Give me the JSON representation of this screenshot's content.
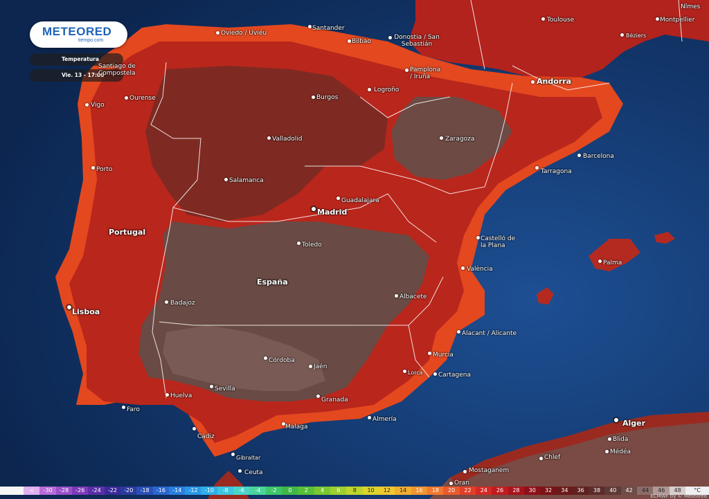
{
  "brand": {
    "name": "METEORED",
    "sub": "tiempo.com"
  },
  "panel": {
    "layer": "Temperatura",
    "time": "Vie. 13 - 17:00"
  },
  "countries": [
    {
      "name": "Portugal",
      "key": "portugal"
    },
    {
      "name": "España",
      "key": "espana"
    }
  ],
  "cities": [
    {
      "name": "Oviedo / Uviéu",
      "key": "oviedo"
    },
    {
      "name": "Santander",
      "key": "santander"
    },
    {
      "name": "Bilbao",
      "key": "bilbao"
    },
    {
      "name": "Donostia / San Sebastián",
      "key": "donostia"
    },
    {
      "name": "Toulouse",
      "key": "toulouse"
    },
    {
      "name": "Nîmes",
      "key": "nimes"
    },
    {
      "name": "Montpellier",
      "key": "montpellier"
    },
    {
      "name": "Béziers",
      "key": "beziers"
    },
    {
      "name": "Santiago de Compostela",
      "key": "santiago"
    },
    {
      "name": "Ourense",
      "key": "ourense"
    },
    {
      "name": "Vigo",
      "key": "vigo"
    },
    {
      "name": "Pamplona / Iruña",
      "key": "pamplona"
    },
    {
      "name": "Logroño",
      "key": "logrono"
    },
    {
      "name": "Burgos",
      "key": "burgos"
    },
    {
      "name": "Andorra",
      "key": "andorra"
    },
    {
      "name": "Valladolid",
      "key": "valladolid"
    },
    {
      "name": "Zaragoza",
      "key": "zaragoza"
    },
    {
      "name": "Barcelona",
      "key": "barcelona"
    },
    {
      "name": "Tarragona",
      "key": "tarragona"
    },
    {
      "name": "Porto",
      "key": "porto"
    },
    {
      "name": "Salamanca",
      "key": "salamanca"
    },
    {
      "name": "Guadalajara",
      "key": "guadalajara"
    },
    {
      "name": "Madrid",
      "key": "madrid"
    },
    {
      "name": "Toledo",
      "key": "toledo"
    },
    {
      "name": "Castelló de la Plana",
      "key": "castello"
    },
    {
      "name": "Palma",
      "key": "palma"
    },
    {
      "name": "València",
      "key": "valencia"
    },
    {
      "name": "Lisboa",
      "key": "lisboa"
    },
    {
      "name": "Badajoz",
      "key": "badajoz"
    },
    {
      "name": "Albacete",
      "key": "albacete"
    },
    {
      "name": "Alacant / Alicante",
      "key": "alicante"
    },
    {
      "name": "Córdoba",
      "key": "cordoba"
    },
    {
      "name": "Jaén",
      "key": "jaen"
    },
    {
      "name": "Murcia",
      "key": "murcia"
    },
    {
      "name": "Lorca",
      "key": "lorca"
    },
    {
      "name": "Cartagena",
      "key": "cartagena"
    },
    {
      "name": "Sevilla",
      "key": "sevilla"
    },
    {
      "name": "Granada",
      "key": "granada"
    },
    {
      "name": "Huelva",
      "key": "huelva"
    },
    {
      "name": "Faro",
      "key": "faro"
    },
    {
      "name": "Almería",
      "key": "almeria"
    },
    {
      "name": "Málaga",
      "key": "malaga"
    },
    {
      "name": "Cádiz",
      "key": "cadiz"
    },
    {
      "name": "Gibraltar",
      "key": "gibraltar"
    },
    {
      "name": "Ceuta",
      "key": "ceuta"
    },
    {
      "name": "Alger",
      "key": "alger"
    },
    {
      "name": "Blida",
      "key": "blida"
    },
    {
      "name": "Médéa",
      "key": "medea"
    },
    {
      "name": "Chlef",
      "key": "chlef"
    },
    {
      "name": "Mostaganem",
      "key": "mostaganem"
    },
    {
      "name": "Oran",
      "key": "oran"
    }
  ],
  "legend": {
    "unit": "°C",
    "ticks": [
      "<",
      "-30",
      "-28",
      "-26",
      "-24",
      "-22",
      "-20",
      "-18",
      "-16",
      "-14",
      "-12",
      "-10",
      "-8",
      "-6",
      "-4",
      "-2",
      "0",
      "2",
      "4",
      "6",
      "8",
      "10",
      "12",
      "14",
      "16",
      "18",
      "20",
      "22",
      "24",
      "26",
      "28",
      "30",
      "32",
      "34",
      "36",
      "38",
      "40",
      "42",
      "44",
      "46",
      "48"
    ],
    "colors": [
      "#e0b0f0",
      "#b86ad8",
      "#9a4fc8",
      "#7d3ab8",
      "#5a2fa8",
      "#3a2a98",
      "#2b3a9e",
      "#2a4fb8",
      "#2a66cc",
      "#2a7ede",
      "#2a96e6",
      "#30aee6",
      "#3cc4e0",
      "#4ad4c8",
      "#48d49a",
      "#3ec46a",
      "#40b848",
      "#58c038",
      "#7ac832",
      "#9cd02e",
      "#bcd42c",
      "#dcd42c",
      "#f0c830",
      "#f2ae30",
      "#f29430",
      "#f07830",
      "#ea5a2c",
      "#e23e28",
      "#d42a24",
      "#c01c20",
      "#a8141c",
      "#8e1018",
      "#7a1416",
      "#6a1a18",
      "#5e2220",
      "#5a2c2a",
      "#5e3a36",
      "#6e4c48",
      "#8a6c68",
      "#b09894",
      "#d8cecc"
    ]
  },
  "credit": "ECMWF by © Meteored"
}
